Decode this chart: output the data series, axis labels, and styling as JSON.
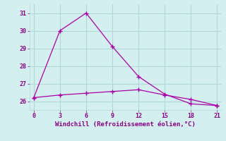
{
  "line1_x": [
    0,
    3,
    6,
    9,
    12,
    15,
    18,
    21
  ],
  "line1_y": [
    26.2,
    30.0,
    31.0,
    29.1,
    27.4,
    26.4,
    25.85,
    25.75
  ],
  "line2_x": [
    0,
    3,
    6,
    9,
    12,
    15,
    18,
    21
  ],
  "line2_y": [
    26.2,
    26.35,
    26.45,
    26.55,
    26.65,
    26.35,
    26.1,
    25.75
  ],
  "line_color": "#aa00aa",
  "bg_color": "#d4efef",
  "grid_color": "#b0d8d8",
  "xlabel": "Windchill (Refroidissement éolien,°C)",
  "xlim": [
    -0.5,
    21.5
  ],
  "ylim": [
    25.5,
    31.5
  ],
  "xticks": [
    0,
    3,
    6,
    9,
    12,
    15,
    18,
    21
  ],
  "yticks": [
    26,
    27,
    28,
    29,
    30,
    31
  ],
  "xlabel_color": "#880088",
  "tick_color": "#880088",
  "marker": "+",
  "markersize": 4,
  "linewidth": 0.9
}
